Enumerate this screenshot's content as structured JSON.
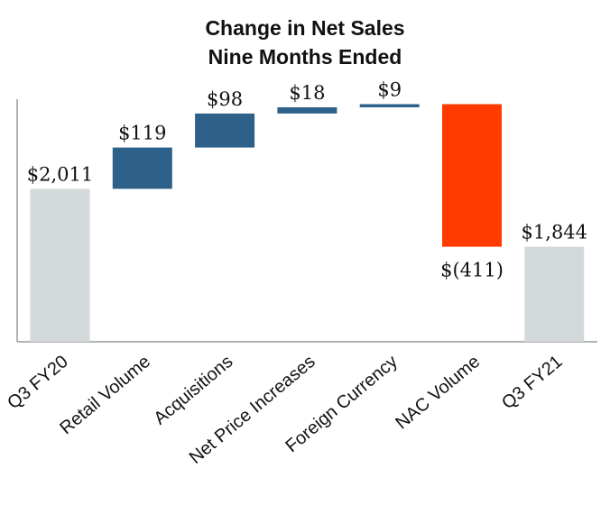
{
  "chart_data": {
    "type": "waterfall",
    "title": "Change in Net Sales",
    "subtitle": "Nine Months Ended",
    "categories": [
      "Q3 FY20",
      "Retail Volume",
      "Acquisitions",
      "Net Price Increases",
      "Foreign Currency",
      "NAC Volume",
      "Q3 FY21"
    ],
    "values": [
      2011,
      119,
      98,
      18,
      9,
      -411,
      1844
    ],
    "kinds": [
      "total",
      "delta",
      "delta",
      "delta",
      "delta",
      "delta",
      "total"
    ],
    "data_labels": [
      "$2,011",
      "$119",
      "$98",
      "$18",
      "$9",
      "$(411)",
      "$1,844"
    ],
    "colors": {
      "total": "#d3d9db",
      "increase": "#2e6189",
      "decrease": "#ff3b00",
      "axis": "#999999"
    },
    "ylim": [
      1570,
      2300
    ],
    "grid": false,
    "legend": "none"
  }
}
